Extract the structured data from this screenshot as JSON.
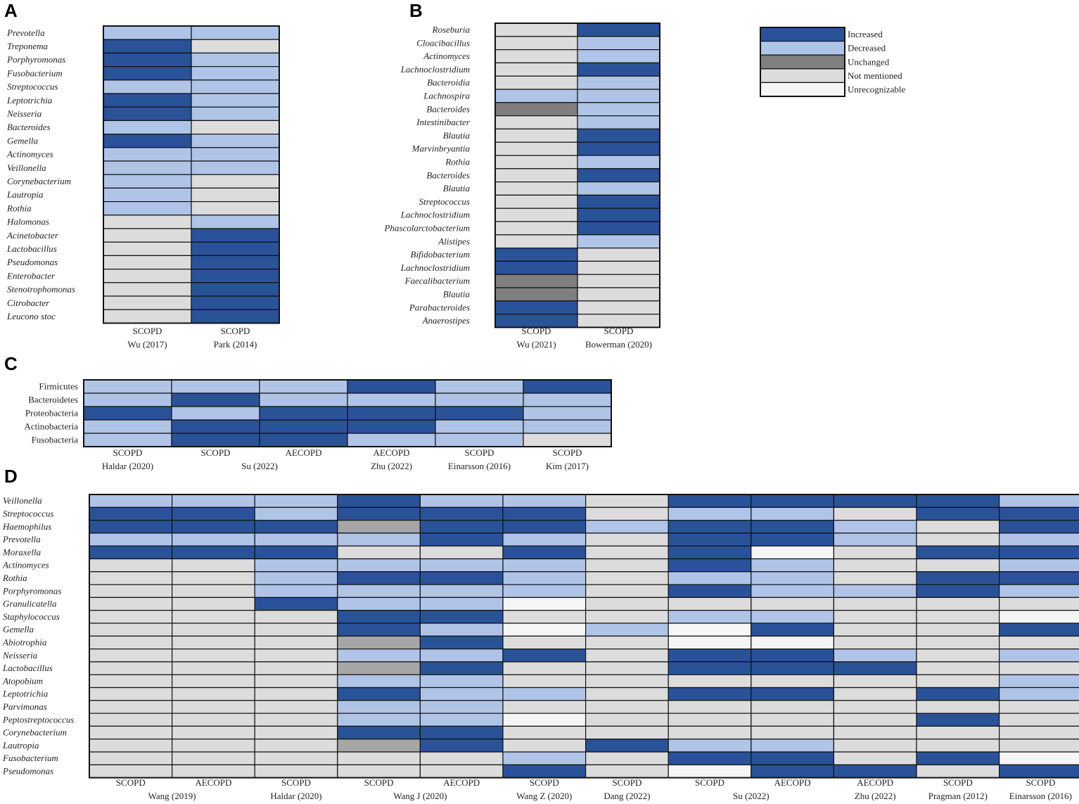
{
  "colors": {
    "I": "#2a5298",
    "D": "#b0c4e8",
    "U": "#7f7f7f",
    "N": "#dcdcdc",
    "R": "#f5f5f5",
    "G": "#a6a6a6"
  },
  "legend": [
    {
      "code": "I",
      "label": "Increased"
    },
    {
      "code": "D",
      "label": "Decreased"
    },
    {
      "code": "U",
      "label": "Unchanged"
    },
    {
      "code": "N",
      "label": "Not mentioned"
    },
    {
      "code": "R",
      "label": "Unrecognizable"
    }
  ],
  "chart_data": [
    {
      "panel": "A",
      "type": "heatmap",
      "rows_italic": true,
      "rows": [
        "Prevotella",
        "Treponema",
        "Porphyromonas",
        "Fusobacterium",
        "Streptococcus",
        "Leptotrichia",
        "Neisseria",
        "Bacteroides",
        "Gemella",
        "Actinomyces",
        "Veillonella",
        "Corynebacterium",
        "Lautropia",
        "Rothia",
        "Halomonas",
        "Acinetobacter",
        "Lactobacillus",
        "Pseudomonas",
        "Enterobacter",
        "Stenotrophomonas",
        "Citrobacter",
        "Leucono stoc"
      ],
      "columns": [
        {
          "line1": "SCOPD",
          "line2": "Wu (2017)"
        },
        {
          "line1": "SCOPD",
          "line2": "Park (2014)"
        }
      ],
      "values": [
        [
          "D",
          "D"
        ],
        [
          "I",
          "N"
        ],
        [
          "I",
          "D"
        ],
        [
          "I",
          "D"
        ],
        [
          "D",
          "D"
        ],
        [
          "I",
          "D"
        ],
        [
          "I",
          "D"
        ],
        [
          "D",
          "N"
        ],
        [
          "I",
          "D"
        ],
        [
          "D",
          "D"
        ],
        [
          "D",
          "D"
        ],
        [
          "D",
          "N"
        ],
        [
          "D",
          "N"
        ],
        [
          "D",
          "N"
        ],
        [
          "N",
          "D"
        ],
        [
          "N",
          "I"
        ],
        [
          "N",
          "I"
        ],
        [
          "N",
          "I"
        ],
        [
          "N",
          "I"
        ],
        [
          "N",
          "I"
        ],
        [
          "N",
          "I"
        ],
        [
          "N",
          "I"
        ]
      ]
    },
    {
      "panel": "B",
      "type": "heatmap",
      "rows_italic": true,
      "rows": [
        "Roseburia",
        "Cloacibacillus",
        "Actinomyces",
        "Lachnoclostridium",
        "Bacteroidia",
        "Lachnospira",
        "Bacteroides",
        "Intestinibacter",
        "Blautia",
        "Marvinbryantia",
        "Rothia",
        "Bacteroides",
        "Blautia",
        "Streptococcus",
        "Lachnoclostridium",
        "Phascolarctobacterium",
        "Alistipes",
        "Bifidobacterium",
        "Lachnoclostridium",
        "Faecalibacterium",
        "Blautia",
        "Parabacteroides",
        "Anaerostipes"
      ],
      "columns": [
        {
          "line1": "SCOPD",
          "line2": "Wu (2021)"
        },
        {
          "line1": "SCOPD",
          "line2": "Bowerman (2020)"
        }
      ],
      "values": [
        [
          "N",
          "I"
        ],
        [
          "N",
          "D"
        ],
        [
          "N",
          "D"
        ],
        [
          "N",
          "I"
        ],
        [
          "N",
          "D"
        ],
        [
          "D",
          "D"
        ],
        [
          "U",
          "D"
        ],
        [
          "N",
          "D"
        ],
        [
          "N",
          "I"
        ],
        [
          "N",
          "I"
        ],
        [
          "N",
          "D"
        ],
        [
          "N",
          "I"
        ],
        [
          "N",
          "D"
        ],
        [
          "N",
          "I"
        ],
        [
          "N",
          "I"
        ],
        [
          "N",
          "I"
        ],
        [
          "N",
          "D"
        ],
        [
          "I",
          "N"
        ],
        [
          "I",
          "N"
        ],
        [
          "U",
          "N"
        ],
        [
          "U",
          "N"
        ],
        [
          "I",
          "N"
        ],
        [
          "I",
          "N"
        ]
      ]
    },
    {
      "panel": "C",
      "type": "heatmap",
      "rows_italic": false,
      "rows": [
        "Firmicutes",
        "Bacteroidetes",
        "Proteobacteria",
        "Actinobacteria",
        "Fusobacteria"
      ],
      "columns": [
        {
          "line1": "SCOPD",
          "line2": "Haldar (2020)"
        },
        {
          "line1": "SCOPD",
          "line2": ""
        },
        {
          "line1": "AECOPD",
          "line2": ""
        },
        {
          "line1": "AECOPD",
          "line2": "Zhu (2022)"
        },
        {
          "line1": "SCOPD",
          "line2": "Einarsson (2016)"
        },
        {
          "line1": "SCOPD",
          "line2": "Kim (2017)"
        }
      ],
      "group_labels": [
        {
          "text": "Su (2022)",
          "from": 1,
          "to": 2
        }
      ],
      "values": [
        [
          "D",
          "D",
          "D",
          "I",
          "D",
          "I"
        ],
        [
          "D",
          "I",
          "D",
          "D",
          "D",
          "D"
        ],
        [
          "I",
          "D",
          "I",
          "I",
          "I",
          "D"
        ],
        [
          "D",
          "I",
          "I",
          "I",
          "D",
          "D"
        ],
        [
          "D",
          "I",
          "I",
          "D",
          "D",
          "N"
        ]
      ]
    },
    {
      "panel": "D",
      "type": "heatmap",
      "rows_italic": true,
      "rows": [
        "Veillonella",
        "Streptococcus",
        "Haemophilus",
        "Prevotella",
        "Moraxella",
        "Actinomyces",
        "Rothia",
        "Porphyromonas",
        "Granulicatella",
        "Staphylococcus",
        "Gemella",
        "Abiotrophia",
        "Neisseria",
        "Lactobacillus",
        "Atopobium",
        "Leptotrichia",
        "Parvimonas",
        "Peptostreptococcus",
        "Corynebacterium",
        "Lautropia",
        "Fusobacterium",
        "Pseudomonas"
      ],
      "columns": [
        {
          "line1": "SCOPD",
          "line2": ""
        },
        {
          "line1": "AECOPD",
          "line2": ""
        },
        {
          "line1": "SCOPD",
          "line2": "Haldar (2020)"
        },
        {
          "line1": "SCOPD",
          "line2": ""
        },
        {
          "line1": "AECOPD",
          "line2": ""
        },
        {
          "line1": "SCOPD",
          "line2": "Wang Z (2020)"
        },
        {
          "line1": "SCOPD",
          "line2": "Dang (2022)"
        },
        {
          "line1": "SCOPD",
          "line2": ""
        },
        {
          "line1": "AECOPD",
          "line2": ""
        },
        {
          "line1": "AECOPD",
          "line2": "Zhu (2022)"
        },
        {
          "line1": "SCOPD",
          "line2": "Pragman (2012)"
        },
        {
          "line1": "SCOPD",
          "line2": "Einarsson (2016)"
        }
      ],
      "group_labels": [
        {
          "text": "Wang (2019)",
          "from": 0,
          "to": 1
        },
        {
          "text": "Wang J (2020)",
          "from": 3,
          "to": 4
        },
        {
          "text": "Su (2022)",
          "from": 7,
          "to": 8
        }
      ],
      "values": [
        [
          "D",
          "D",
          "D",
          "I",
          "D",
          "D",
          "N",
          "I",
          "I",
          "I",
          "I",
          "D"
        ],
        [
          "I",
          "I",
          "D",
          "I",
          "I",
          "I",
          "N",
          "D",
          "D",
          "N",
          "I",
          "I"
        ],
        [
          "I",
          "I",
          "I",
          "G",
          "I",
          "I",
          "D",
          "I",
          "I",
          "D",
          "N",
          "I"
        ],
        [
          "D",
          "D",
          "D",
          "D",
          "I",
          "D",
          "N",
          "I",
          "I",
          "D",
          "N",
          "D"
        ],
        [
          "I",
          "I",
          "I",
          "N",
          "N",
          "I",
          "N",
          "I",
          "R",
          "N",
          "I",
          "I"
        ],
        [
          "N",
          "N",
          "D",
          "D",
          "D",
          "D",
          "N",
          "I",
          "D",
          "N",
          "N",
          "D"
        ],
        [
          "N",
          "N",
          "D",
          "I",
          "I",
          "D",
          "N",
          "D",
          "D",
          "N",
          "I",
          "I"
        ],
        [
          "N",
          "N",
          "D",
          "D",
          "D",
          "D",
          "N",
          "I",
          "D",
          "D",
          "I",
          "D"
        ],
        [
          "N",
          "N",
          "I",
          "D",
          "D",
          "R",
          "N",
          "N",
          "N",
          "N",
          "N",
          "N"
        ],
        [
          "N",
          "N",
          "N",
          "I",
          "I",
          "N",
          "N",
          "D",
          "D",
          "N",
          "N",
          "R"
        ],
        [
          "N",
          "N",
          "N",
          "I",
          "D",
          "R",
          "D",
          "R",
          "I",
          "N",
          "N",
          "I"
        ],
        [
          "N",
          "N",
          "N",
          "G",
          "I",
          "N",
          "N",
          "R",
          "R",
          "N",
          "N",
          "N"
        ],
        [
          "N",
          "N",
          "N",
          "D",
          "D",
          "I",
          "N",
          "I",
          "I",
          "D",
          "N",
          "D"
        ],
        [
          "N",
          "N",
          "N",
          "G",
          "I",
          "N",
          "N",
          "I",
          "I",
          "I",
          "N",
          "N"
        ],
        [
          "N",
          "N",
          "N",
          "D",
          "D",
          "N",
          "N",
          "N",
          "N",
          "N",
          "N",
          "D"
        ],
        [
          "N",
          "N",
          "N",
          "I",
          "D",
          "D",
          "N",
          "I",
          "I",
          "N",
          "I",
          "D"
        ],
        [
          "N",
          "N",
          "N",
          "D",
          "D",
          "N",
          "N",
          "N",
          "N",
          "N",
          "N",
          "N"
        ],
        [
          "N",
          "N",
          "N",
          "D",
          "D",
          "R",
          "N",
          "N",
          "N",
          "N",
          "I",
          "N"
        ],
        [
          "N",
          "N",
          "N",
          "I",
          "I",
          "N",
          "N",
          "N",
          "N",
          "N",
          "N",
          "N"
        ],
        [
          "N",
          "N",
          "N",
          "G",
          "I",
          "N",
          "I",
          "D",
          "D",
          "N",
          "N",
          "N"
        ],
        [
          "N",
          "N",
          "N",
          "N",
          "N",
          "D",
          "N",
          "I",
          "I",
          "N",
          "I",
          "R"
        ],
        [
          "N",
          "N",
          "N",
          "N",
          "N",
          "I",
          "N",
          "R",
          "I",
          "I",
          "N",
          "I"
        ]
      ]
    }
  ]
}
